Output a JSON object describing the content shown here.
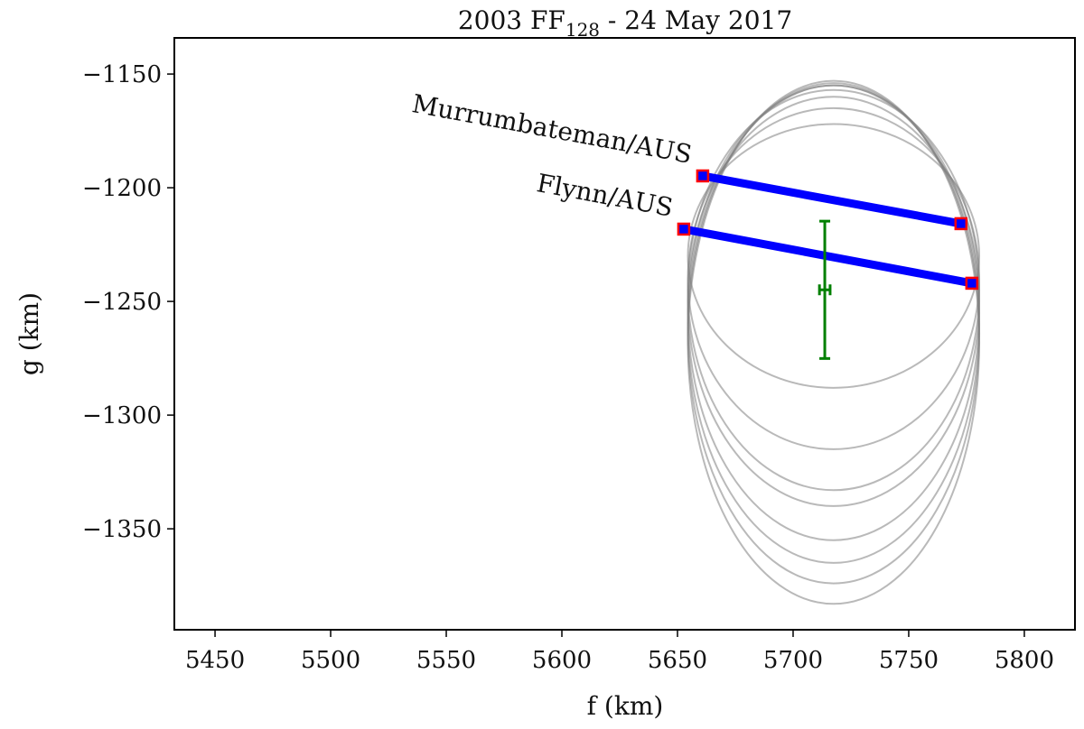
{
  "chart_data": {
    "type": "occultation",
    "title": {
      "text": "2003 FF",
      "subscript": "128",
      "rest": " - 24 May 2017"
    },
    "x_label": "f (km)",
    "y_label": "g (km)",
    "xlim": [
      5432.4,
      5821.9
    ],
    "ylim": [
      -1394.4,
      -1134.1
    ],
    "xticks": [
      5450,
      5500,
      5550,
      5600,
      5650,
      5700,
      5750,
      5800
    ],
    "yticks": [
      {
        "value": -1150,
        "label": "−1150"
      },
      {
        "value": -1200,
        "label": "−1200"
      },
      {
        "value": -1250,
        "label": "−1250"
      },
      {
        "value": -1300,
        "label": "−1300"
      },
      {
        "value": -1350,
        "label": "−1350"
      }
    ],
    "chords": [
      {
        "name": "Murrumbateman/AUS",
        "f": [
          5660.9,
          5772.6
        ],
        "g": [
          -1194.8,
          -1215.8
        ],
        "color": "#0000ff",
        "end_color": "#ff0000"
      },
      {
        "name": "Flynn/AUS",
        "f": [
          5652.7,
          5777.3
        ],
        "g": [
          -1218.2,
          -1242.0
        ],
        "color": "#0000ff",
        "end_color": "#ff0000"
      }
    ],
    "ellipses": {
      "color": "#808080",
      "f0": [
        5717.5,
        5717.5,
        5717.5,
        5717.5,
        5717.5,
        5717.5,
        5717.5,
        5717.5
      ],
      "g0": [
        -1230,
        -1240,
        -1250,
        -1260,
        -1268,
        -1245,
        -1255,
        -1264
      ],
      "a": [
        63,
        63,
        63,
        63,
        63,
        63,
        63,
        63
      ],
      "b": [
        58,
        75,
        90,
        105,
        115,
        88,
        100,
        110
      ]
    },
    "center": {
      "f": 5713.7,
      "g": -1244.9,
      "f_err": 2.3,
      "g_err": 30.2,
      "color": "#008000"
    }
  }
}
